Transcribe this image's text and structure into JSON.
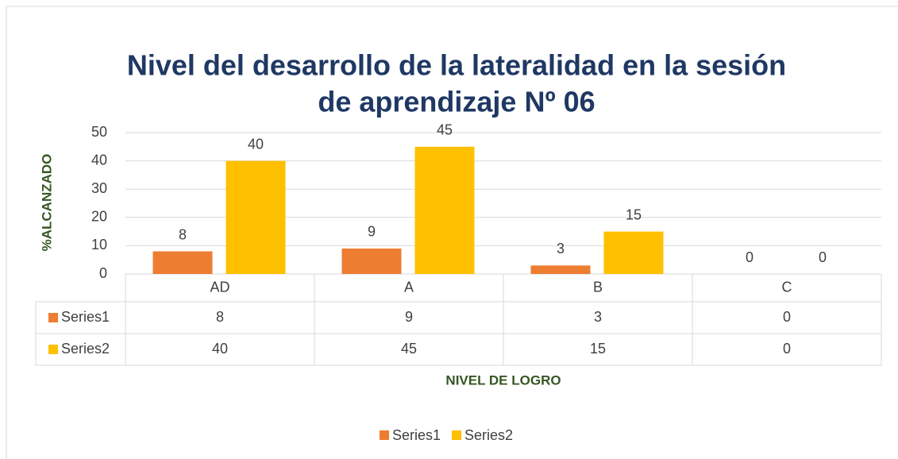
{
  "chart_data": {
    "type": "bar",
    "title": [
      "Nivel del desarrollo de la lateralidad en la sesión",
      "de aprendizaje Nº 06"
    ],
    "y_label": "%ALCANZADO",
    "x_label": "NIVEL DE LOGRO",
    "categories": [
      "AD",
      "A",
      "B",
      "C"
    ],
    "series": [
      {
        "name": "Series1",
        "color": "#ed7d31",
        "values": [
          8,
          9,
          3,
          0
        ]
      },
      {
        "name": "Series2",
        "color": "#ffc000",
        "values": [
          40,
          45,
          15,
          0
        ]
      }
    ],
    "ylim": [
      0,
      50
    ],
    "yticks": [
      0,
      10,
      20,
      30,
      40,
      50
    ],
    "grid": true,
    "legend": "bottom",
    "data_table": true
  }
}
